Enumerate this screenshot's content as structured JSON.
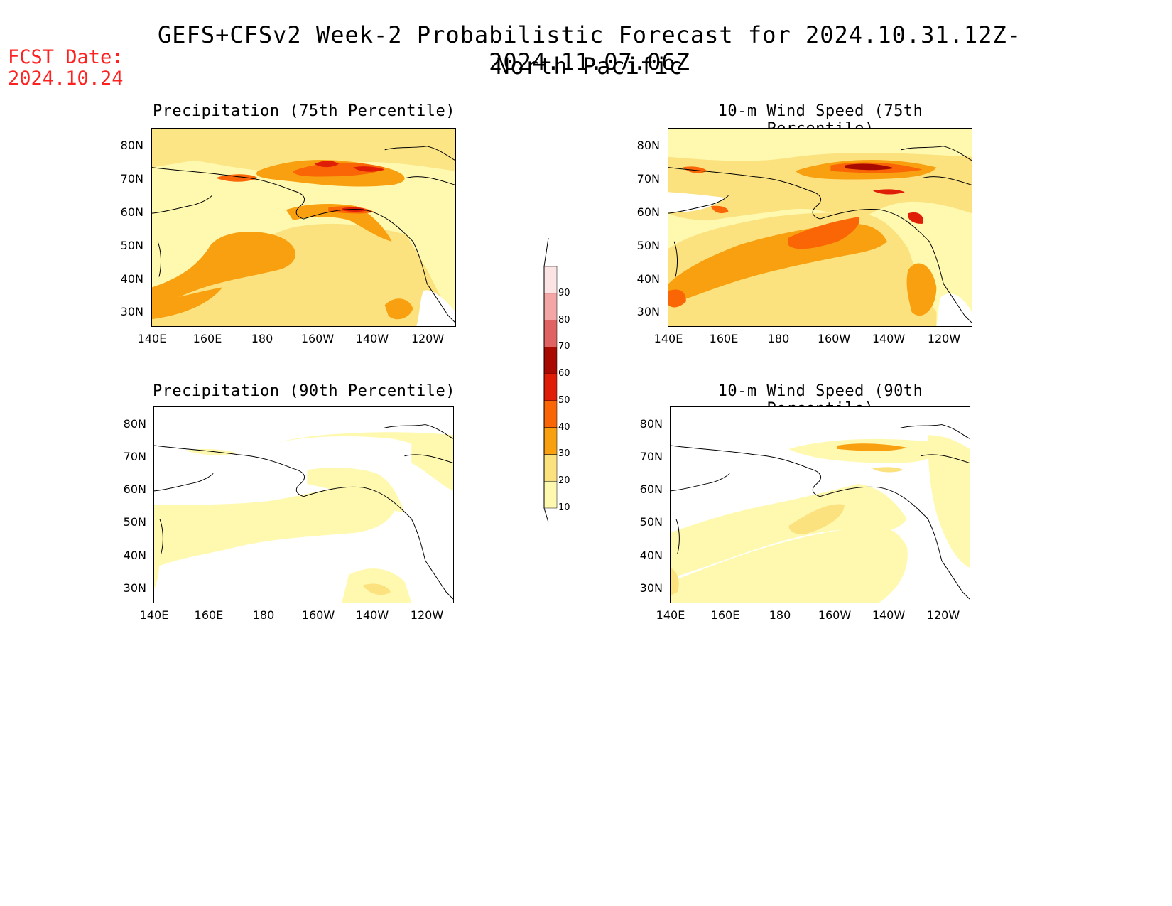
{
  "header": {
    "title": "GEFS+CFSv2 Week-2 Probabilistic Forecast for 2024.10.31.12Z-2024.11.07.06Z",
    "region": "North Pacific",
    "fcst_date_label": "FCST Date:",
    "fcst_date": "2024.10.24"
  },
  "axes": {
    "lat_labels": [
      "80N",
      "70N",
      "60N",
      "50N",
      "40N",
      "30N"
    ],
    "lon_labels": [
      "140E",
      "160E",
      "180",
      "160W",
      "140W",
      "120W"
    ]
  },
  "panels": [
    {
      "id": "p75",
      "title": "Precipitation (75th Percentile)"
    },
    {
      "id": "w75",
      "title": "10-m Wind Speed (75th Percentile)"
    },
    {
      "id": "p90",
      "title": "Precipitation (90th Percentile)"
    },
    {
      "id": "w90",
      "title": "10-m Wind Speed (90th Percentile)"
    }
  ],
  "colorbar": {
    "levels": [
      "10",
      "20",
      "30",
      "40",
      "50",
      "60",
      "70",
      "80",
      "90"
    ],
    "colors": [
      "#fff9b0",
      "#fbe27f",
      "#f8a010",
      "#fa6505",
      "#e01e08",
      "#a80a02",
      "#e06262",
      "#f4a6a6",
      "#fde4e4"
    ]
  }
}
